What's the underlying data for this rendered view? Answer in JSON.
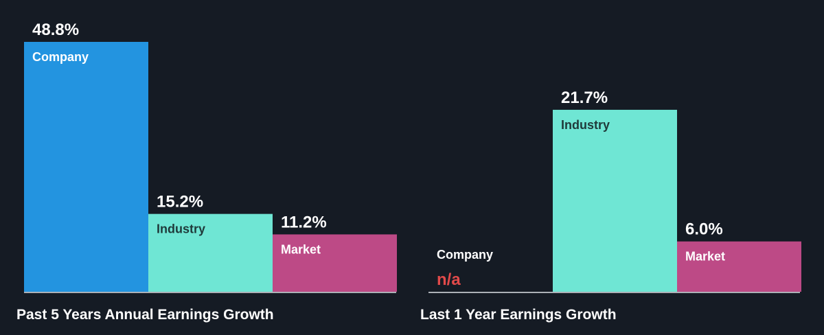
{
  "colors": {
    "background": "#151b24",
    "company": "#2394e0",
    "industry": "#6fe6d4",
    "market": "#bd4a86",
    "value_text": "#ffffff",
    "na_text": "#e24a4a",
    "baseline": "#dfe3e8"
  },
  "chart_data": [
    {
      "type": "bar",
      "title": "Past 5 Years Annual Earnings Growth",
      "categories": [
        "Company",
        "Industry",
        "Market"
      ],
      "values": [
        48.8,
        15.2,
        11.2
      ],
      "value_labels": [
        "48.8%",
        "15.2%",
        "11.2%"
      ],
      "unit": "%",
      "ylim": [
        0,
        48.8
      ],
      "grid": false,
      "legend": "none"
    },
    {
      "type": "bar",
      "title": "Last 1 Year Earnings Growth",
      "categories": [
        "Company",
        "Industry",
        "Market"
      ],
      "values": [
        null,
        21.7,
        6.0
      ],
      "value_labels": [
        "n/a",
        "21.7%",
        "6.0%"
      ],
      "unit": "%",
      "ylim": [
        0,
        29.8
      ],
      "grid": false,
      "legend": "none"
    }
  ]
}
